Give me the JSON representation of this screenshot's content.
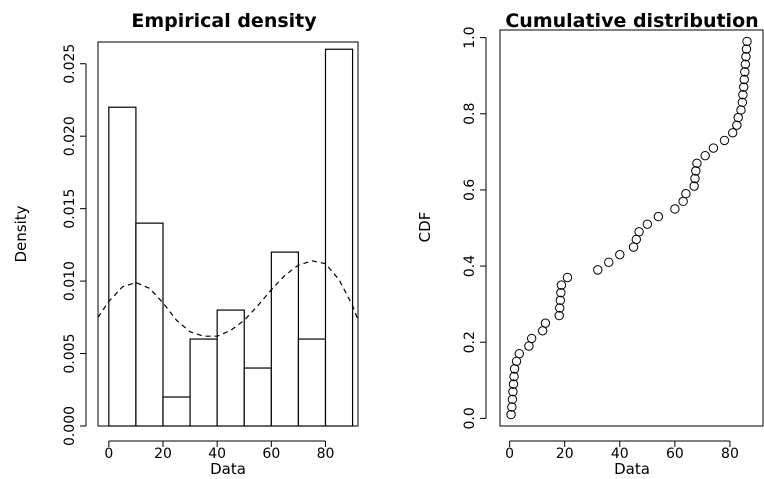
{
  "chart_data": [
    {
      "type": "bar",
      "title": "Empirical density",
      "xlabel": "Data",
      "ylabel": "Density",
      "bins": [
        {
          "x0": 0,
          "x1": 10,
          "value": 0.022
        },
        {
          "x0": 10,
          "x1": 20,
          "value": 0.014
        },
        {
          "x0": 20,
          "x1": 30,
          "value": 0.002
        },
        {
          "x0": 30,
          "x1": 40,
          "value": 0.006
        },
        {
          "x0": 40,
          "x1": 50,
          "value": 0.008
        },
        {
          "x0": 50,
          "x1": 60,
          "value": 0.004
        },
        {
          "x0": 60,
          "x1": 70,
          "value": 0.012
        },
        {
          "x0": 70,
          "x1": 80,
          "value": 0.006
        },
        {
          "x0": 80,
          "x1": 90,
          "value": 0.026
        }
      ],
      "density_curve": {
        "style": "dashed",
        "x": [
          -4,
          0,
          5,
          10,
          15,
          20,
          25,
          30,
          35,
          40,
          45,
          50,
          55,
          60,
          65,
          70,
          75,
          80,
          85,
          90,
          92
        ],
        "y": [
          0.0075,
          0.0086,
          0.0096,
          0.0099,
          0.0095,
          0.0085,
          0.0073,
          0.0065,
          0.0062,
          0.0062,
          0.0066,
          0.0073,
          0.0083,
          0.0094,
          0.0104,
          0.0111,
          0.0114,
          0.0112,
          0.0101,
          0.0083,
          0.0073
        ]
      },
      "xlim": [
        -4,
        92
      ],
      "ylim": [
        0,
        0.0265
      ],
      "xticks": [
        0,
        20,
        40,
        60,
        80
      ],
      "yticks": [
        0.0,
        0.005,
        0.01,
        0.015,
        0.02,
        0.025
      ],
      "ytick_labels": [
        "0.000",
        "0.005",
        "0.010",
        "0.015",
        "0.020",
        "0.025"
      ]
    },
    {
      "type": "scatter",
      "title": "Cumulative distribution",
      "xlabel": "Data",
      "ylabel": "CDF",
      "marker": "open-circle",
      "points": [
        [
          0.5,
          0.01
        ],
        [
          0.8,
          0.03
        ],
        [
          1.0,
          0.05
        ],
        [
          1.2,
          0.07
        ],
        [
          1.4,
          0.09
        ],
        [
          1.6,
          0.11
        ],
        [
          1.8,
          0.13
        ],
        [
          2.5,
          0.15
        ],
        [
          3.5,
          0.17
        ],
        [
          7,
          0.19
        ],
        [
          8,
          0.21
        ],
        [
          12,
          0.23
        ],
        [
          13,
          0.25
        ],
        [
          18,
          0.27
        ],
        [
          18.2,
          0.29
        ],
        [
          18.4,
          0.31
        ],
        [
          18.6,
          0.33
        ],
        [
          18.8,
          0.35
        ],
        [
          21,
          0.37
        ],
        [
          32,
          0.39
        ],
        [
          36,
          0.41
        ],
        [
          40,
          0.43
        ],
        [
          45,
          0.45
        ],
        [
          46,
          0.47
        ],
        [
          47,
          0.49
        ],
        [
          50,
          0.51
        ],
        [
          54,
          0.53
        ],
        [
          60,
          0.55
        ],
        [
          63,
          0.57
        ],
        [
          64,
          0.59
        ],
        [
          67,
          0.61
        ],
        [
          67.3,
          0.63
        ],
        [
          67.6,
          0.65
        ],
        [
          68,
          0.67
        ],
        [
          71,
          0.69
        ],
        [
          74,
          0.71
        ],
        [
          78,
          0.73
        ],
        [
          81,
          0.75
        ],
        [
          82.5,
          0.77
        ],
        [
          83,
          0.79
        ],
        [
          84,
          0.81
        ],
        [
          84.5,
          0.83
        ],
        [
          84.7,
          0.85
        ],
        [
          85,
          0.87
        ],
        [
          85.2,
          0.89
        ],
        [
          85.4,
          0.91
        ],
        [
          85.6,
          0.93
        ],
        [
          85.8,
          0.95
        ],
        [
          86,
          0.97
        ],
        [
          86.2,
          0.99
        ]
      ],
      "xlim": [
        -3.5,
        92
      ],
      "ylim": [
        -0.02,
        1.02
      ],
      "xticks": [
        0,
        20,
        40,
        60,
        80
      ],
      "yticks": [
        0.0,
        0.2,
        0.4,
        0.6,
        0.8,
        1.0
      ],
      "ytick_labels": [
        "0.0",
        "0.2",
        "0.4",
        "0.6",
        "0.8",
        "1.0"
      ]
    }
  ]
}
